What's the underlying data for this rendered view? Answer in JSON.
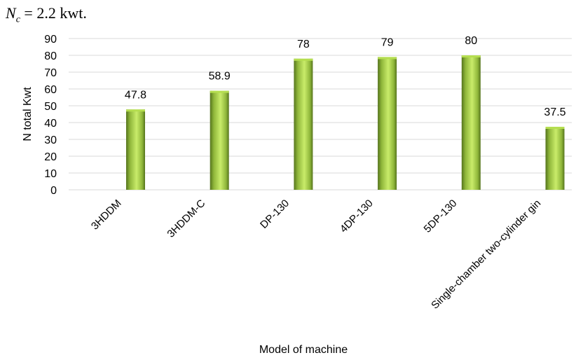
{
  "header": {
    "var_symbol": "N",
    "var_subscript": "c",
    "equation_rest": " = 2.2 kwt."
  },
  "chart_data": {
    "type": "bar",
    "categories": [
      "3HDDM",
      "3HDDM-C",
      "DP-130",
      "4DP-130",
      "5DP-130",
      "Single-chamber two-cylinder gin"
    ],
    "values": [
      47.8,
      58.9,
      78,
      79,
      80,
      37.5
    ],
    "data_labels": [
      "47.8",
      "58.9",
      "78",
      "79",
      "80",
      "37.5"
    ],
    "xlabel": "Model of machine",
    "ylabel": "N total Kwt",
    "ylim": [
      0,
      90
    ],
    "yticks": [
      0,
      10,
      20,
      30,
      40,
      50,
      60,
      70,
      80,
      90
    ],
    "grid": true,
    "colors": {
      "bar_light": "#c9ec6a",
      "bar_mid": "#8fb63a",
      "bar_dark": "#55741d",
      "bar_top": "#b5de50",
      "grid": "#d9d9d9"
    }
  }
}
